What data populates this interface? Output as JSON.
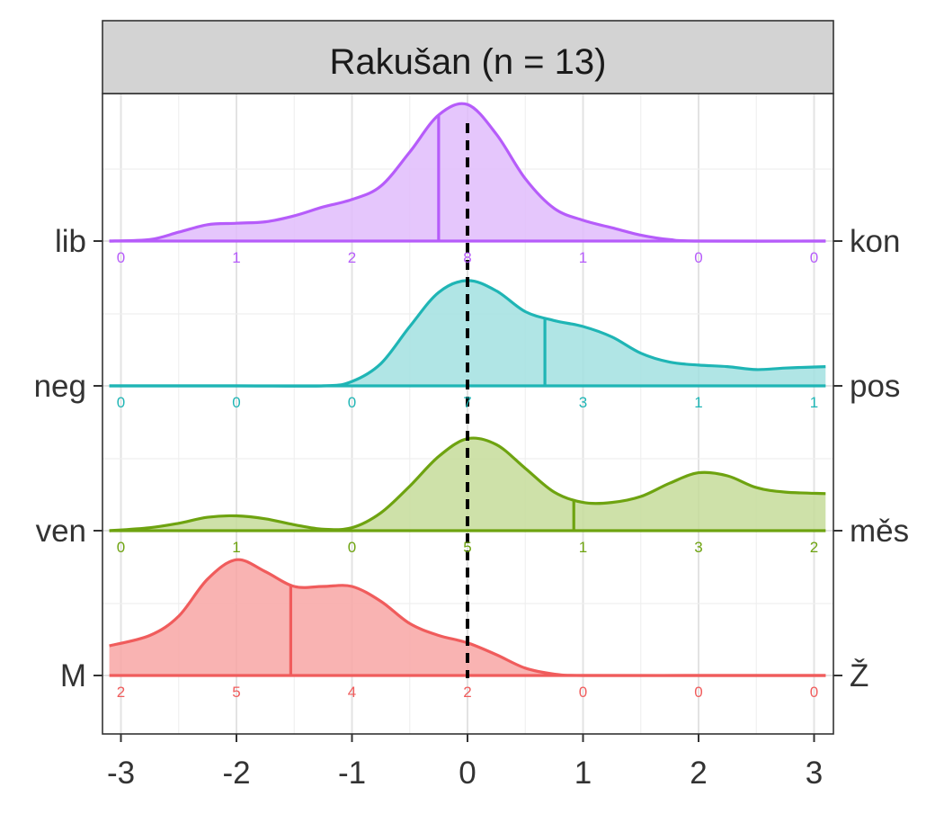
{
  "chart_data": {
    "type": "ridgeline density",
    "facet_title": "Rakušan (n = 13)",
    "x_ticks": [
      -3,
      -2,
      -1,
      0,
      1,
      2,
      3
    ],
    "x_tick_labels": [
      "-3",
      "-2",
      "-1",
      "0",
      "1",
      "2",
      "3"
    ],
    "xlim": [
      -3.1,
      3.1
    ],
    "reference_line_x": 0,
    "grid": true,
    "series": [
      {
        "left_label": "M",
        "right_label": "Ž",
        "color": "#F05C5C",
        "fill": "#F8A6A4",
        "mean_x": -1.53,
        "counts": [
          2,
          5,
          4,
          2,
          0,
          0,
          0
        ],
        "density": [
          [
            -3.1,
            0.2
          ],
          [
            -2.75,
            0.27
          ],
          [
            -2.5,
            0.4
          ],
          [
            -2.25,
            0.65
          ],
          [
            -2.0,
            0.78
          ],
          [
            -1.75,
            0.7
          ],
          [
            -1.5,
            0.6
          ],
          [
            -1.25,
            0.6
          ],
          [
            -1.0,
            0.6
          ],
          [
            -0.75,
            0.5
          ],
          [
            -0.5,
            0.35
          ],
          [
            -0.25,
            0.27
          ],
          [
            0.0,
            0.22
          ],
          [
            0.25,
            0.14
          ],
          [
            0.5,
            0.05
          ],
          [
            0.75,
            0.01
          ],
          [
            1.0,
            0.0
          ],
          [
            2.0,
            0.0
          ],
          [
            3.1,
            0.0
          ]
        ]
      },
      {
        "left_label": "ven",
        "right_label": "měs",
        "color": "#6EA310",
        "fill": "#C5DC9A",
        "mean_x": 0.92,
        "counts": [
          0,
          1,
          0,
          5,
          1,
          3,
          2
        ],
        "density": [
          [
            -3.1,
            0.0
          ],
          [
            -2.75,
            0.02
          ],
          [
            -2.5,
            0.05
          ],
          [
            -2.25,
            0.09
          ],
          [
            -2.0,
            0.1
          ],
          [
            -1.75,
            0.08
          ],
          [
            -1.5,
            0.04
          ],
          [
            -1.25,
            0.01
          ],
          [
            -1.0,
            0.02
          ],
          [
            -0.75,
            0.12
          ],
          [
            -0.5,
            0.3
          ],
          [
            -0.25,
            0.5
          ],
          [
            0.0,
            0.62
          ],
          [
            0.25,
            0.58
          ],
          [
            0.5,
            0.42
          ],
          [
            0.75,
            0.26
          ],
          [
            1.0,
            0.19
          ],
          [
            1.25,
            0.19
          ],
          [
            1.5,
            0.23
          ],
          [
            1.75,
            0.32
          ],
          [
            2.0,
            0.39
          ],
          [
            2.25,
            0.37
          ],
          [
            2.5,
            0.29
          ],
          [
            2.75,
            0.26
          ],
          [
            3.1,
            0.25
          ]
        ]
      },
      {
        "left_label": "neg",
        "right_label": "pos",
        "color": "#1FB5B5",
        "fill": "#A2E0E0",
        "mean_x": 0.67,
        "counts": [
          0,
          0,
          0,
          7,
          3,
          1,
          1
        ],
        "density": [
          [
            -3.1,
            0.0
          ],
          [
            -2.0,
            0.0
          ],
          [
            -1.25,
            0.0
          ],
          [
            -1.0,
            0.03
          ],
          [
            -0.75,
            0.15
          ],
          [
            -0.5,
            0.4
          ],
          [
            -0.25,
            0.63
          ],
          [
            0.0,
            0.71
          ],
          [
            0.25,
            0.64
          ],
          [
            0.5,
            0.5
          ],
          [
            0.75,
            0.44
          ],
          [
            1.0,
            0.4
          ],
          [
            1.25,
            0.33
          ],
          [
            1.5,
            0.22
          ],
          [
            1.75,
            0.16
          ],
          [
            2.0,
            0.14
          ],
          [
            2.25,
            0.13
          ],
          [
            2.5,
            0.11
          ],
          [
            2.75,
            0.12
          ],
          [
            3.1,
            0.13
          ]
        ]
      },
      {
        "left_label": "lib",
        "right_label": "kon",
        "color": "#B65CFA",
        "fill": "#E1BCFB",
        "mean_x": -0.25,
        "counts": [
          0,
          1,
          2,
          8,
          1,
          0,
          0
        ],
        "density": [
          [
            -3.1,
            0.0
          ],
          [
            -2.75,
            0.01
          ],
          [
            -2.5,
            0.06
          ],
          [
            -2.25,
            0.11
          ],
          [
            -2.0,
            0.12
          ],
          [
            -1.75,
            0.13
          ],
          [
            -1.5,
            0.17
          ],
          [
            -1.25,
            0.23
          ],
          [
            -1.0,
            0.28
          ],
          [
            -0.75,
            0.37
          ],
          [
            -0.5,
            0.6
          ],
          [
            -0.25,
            0.85
          ],
          [
            0.0,
            0.92
          ],
          [
            0.25,
            0.72
          ],
          [
            0.5,
            0.42
          ],
          [
            0.75,
            0.22
          ],
          [
            1.0,
            0.14
          ],
          [
            1.25,
            0.09
          ],
          [
            1.5,
            0.04
          ],
          [
            1.75,
            0.01
          ],
          [
            2.0,
            0.0
          ],
          [
            3.1,
            0.0
          ]
        ]
      }
    ]
  }
}
